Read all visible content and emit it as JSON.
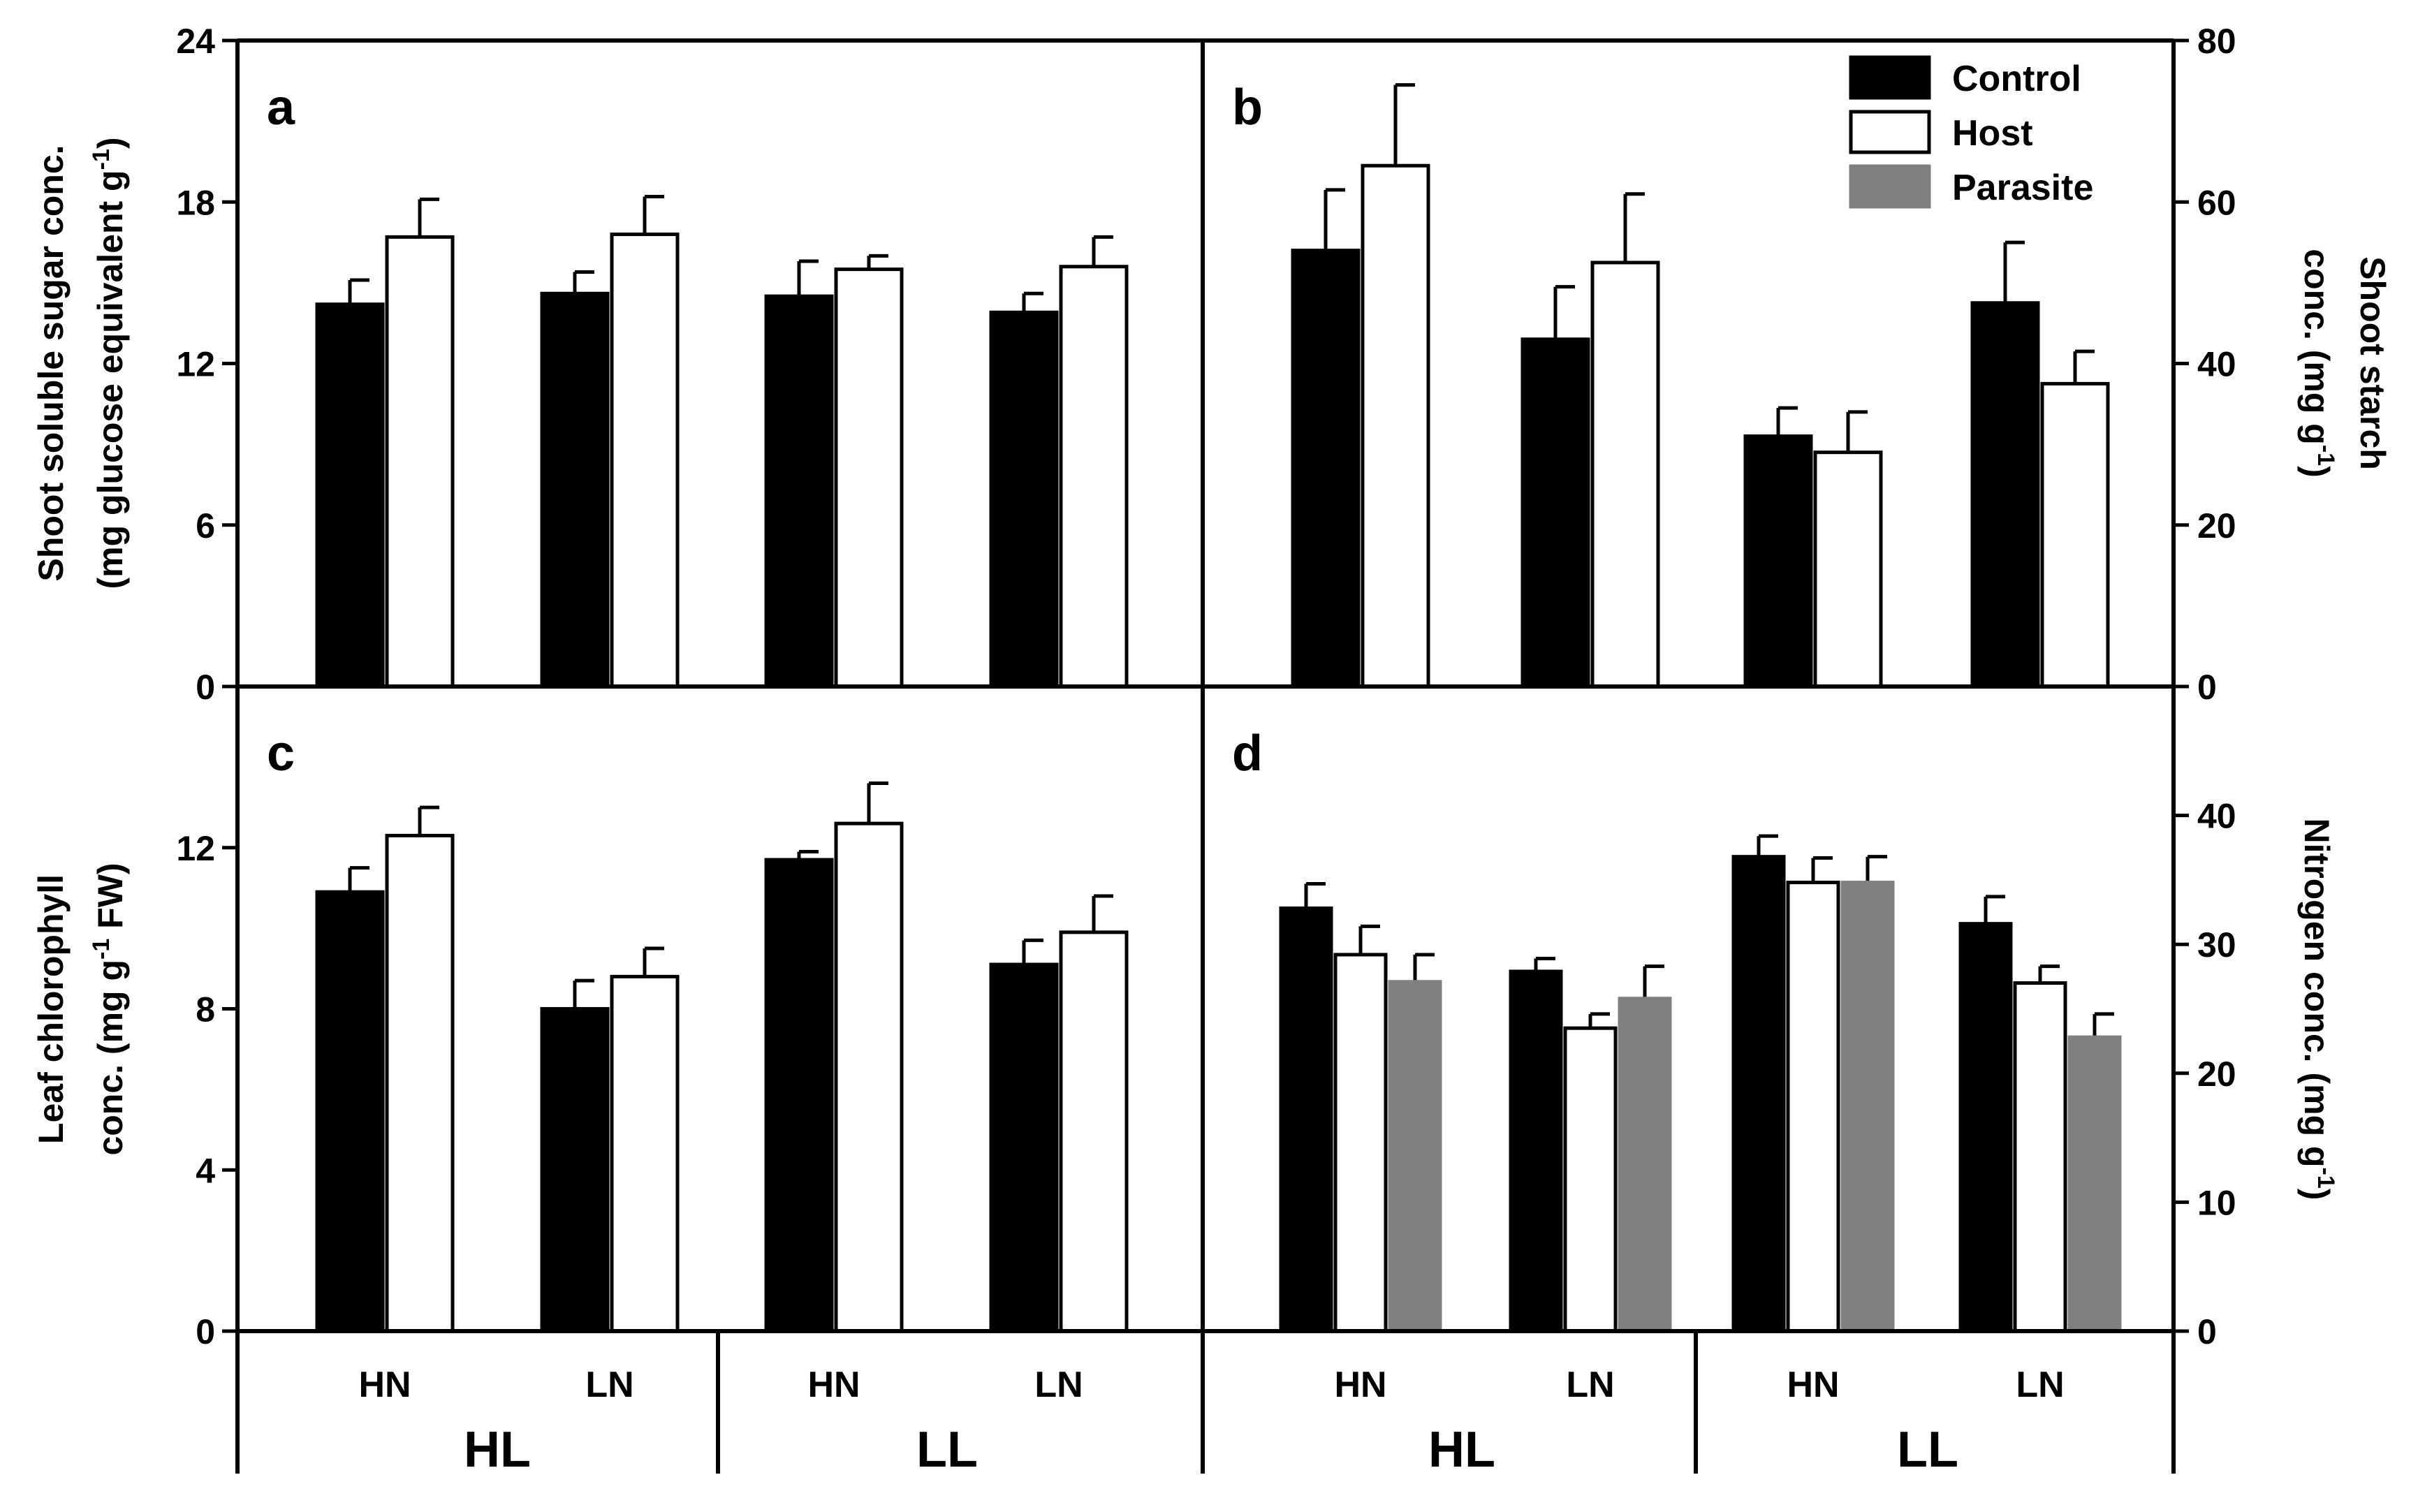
{
  "chart_data": [
    {
      "panel": "a",
      "type": "bar",
      "ylabel_line1": "Shoot soluble sugar conc.",
      "ylabel_line2": "(mg glucose equivalent g",
      "ylabel_sup": "-1",
      "ylabel_end": ")",
      "ylim": [
        0,
        24
      ],
      "yticks": [
        "0",
        "6",
        "12",
        "18",
        "24"
      ],
      "categories": [
        "HL-HN",
        "HL-LN",
        "LL-HN",
        "LL-LN"
      ],
      "series": [
        {
          "name": "Control",
          "values": [
            14.2,
            14.6,
            14.5,
            13.9
          ],
          "errors": [
            0.9,
            0.8,
            1.3,
            0.7
          ]
        },
        {
          "name": "Host",
          "values": [
            16.7,
            16.8,
            15.5,
            15.6
          ],
          "errors": [
            1.4,
            1.4,
            0.5,
            1.1
          ]
        }
      ]
    },
    {
      "panel": "b",
      "type": "bar",
      "ylabel_line1": "Shoot starch",
      "ylabel_line2": "conc. (mg g",
      "ylabel_sup": "-1",
      "ylabel_end": ")",
      "ylim": [
        0,
        80
      ],
      "yticks": [
        "0",
        "20",
        "40",
        "60",
        "80"
      ],
      "categories": [
        "HL-HN",
        "HL-LN",
        "LL-HN",
        "LL-LN"
      ],
      "series": [
        {
          "name": "Control",
          "values": [
            54,
            43,
            31,
            47.5
          ],
          "errors": [
            7.5,
            6.5,
            3.5,
            7.5
          ]
        },
        {
          "name": "Host",
          "values": [
            64.5,
            52.5,
            29,
            37.5
          ],
          "errors": [
            10,
            8.5,
            5,
            4
          ]
        }
      ]
    },
    {
      "panel": "c",
      "type": "bar",
      "ylabel_line1": "Leaf chlorophyll",
      "ylabel_line2": "conc. (mg g",
      "ylabel_sup": "-1",
      "ylabel_end": " FW)",
      "ylim": [
        0,
        16
      ],
      "yticks": [
        "0",
        "4",
        "8",
        "12"
      ],
      "categories": [
        "HL-HN",
        "HL-LN",
        "LL-HN",
        "LL-LN"
      ],
      "series": [
        {
          "name": "Control",
          "values": [
            10.9,
            8.0,
            11.7,
            9.1
          ],
          "errors": [
            0.6,
            0.7,
            0.2,
            0.6
          ]
        },
        {
          "name": "Host",
          "values": [
            12.3,
            8.8,
            12.6,
            9.9
          ],
          "errors": [
            0.7,
            0.7,
            1.0,
            0.9
          ]
        }
      ]
    },
    {
      "panel": "d",
      "type": "bar",
      "ylabel_line1": "Nitrogen conc. (mg g",
      "ylabel_sup": "-1",
      "ylabel_end": ")",
      "ylim": [
        0,
        50
      ],
      "yticks": [
        "0",
        "10",
        "20",
        "30",
        "40"
      ],
      "categories": [
        "HL-HN",
        "HL-LN",
        "LL-HN",
        "LL-LN"
      ],
      "series": [
        {
          "name": "Control",
          "values": [
            32.8,
            27.9,
            36.8,
            31.6
          ],
          "errors": [
            1.9,
            1.0,
            1.6,
            2.1
          ]
        },
        {
          "name": "Host",
          "values": [
            29.2,
            23.5,
            34.8,
            27.0
          ],
          "errors": [
            2.2,
            1.1,
            1.9,
            1.3
          ]
        },
        {
          "name": "Parasite",
          "values": [
            27.1,
            25.8,
            34.8,
            22.8
          ],
          "errors": [
            2.1,
            2.5,
            2.0,
            1.8
          ]
        }
      ]
    }
  ],
  "x_labels": {
    "nitrogen": [
      "HN",
      "LN",
      "HN",
      "LN"
    ],
    "light": [
      "HL",
      "LL"
    ]
  },
  "legend": [
    {
      "name": "Control",
      "color": "#000000"
    },
    {
      "name": "Host",
      "color": "#ffffff"
    },
    {
      "name": "Parasite",
      "color": "#808080"
    }
  ],
  "colors": {
    "Control": "#000000",
    "Host": "#ffffff",
    "Parasite": "#808080"
  }
}
